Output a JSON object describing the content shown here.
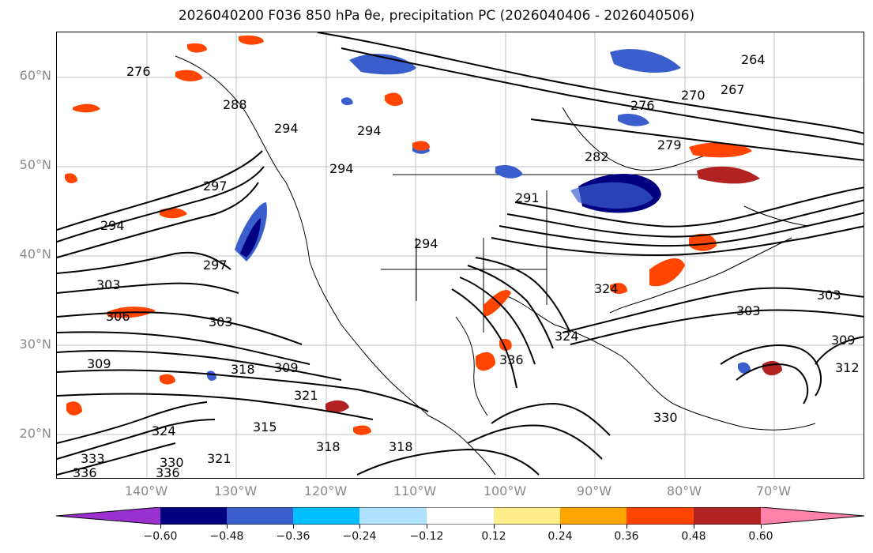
{
  "title": "2026040200 F036 850 hPa θe, precipitation PC (2026040406 - 2026040506)",
  "lat_labels": [
    {
      "text": "60°N",
      "value": 60
    },
    {
      "text": "50°N",
      "value": 50
    },
    {
      "text": "40°N",
      "value": 40
    },
    {
      "text": "30°N",
      "value": 30
    },
    {
      "text": "20°N",
      "value": 20
    }
  ],
  "lon_labels": [
    {
      "text": "140°W",
      "value": -140
    },
    {
      "text": "130°W",
      "value": -130
    },
    {
      "text": "120°W",
      "value": -120
    },
    {
      "text": "110°W",
      "value": -110
    },
    {
      "text": "100°W",
      "value": -100
    },
    {
      "text": "90°W",
      "value": -90
    },
    {
      "text": "80°W",
      "value": -80
    },
    {
      "text": "70°W",
      "value": -70
    }
  ],
  "map_extent": {
    "lon": [
      -150,
      -60
    ],
    "lat": [
      15,
      65
    ]
  },
  "contour_labels": [
    {
      "text": "276"
    },
    {
      "text": "288"
    },
    {
      "text": "294"
    },
    {
      "text": "294"
    },
    {
      "text": "294"
    },
    {
      "text": "297"
    },
    {
      "text": "294"
    },
    {
      "text": "297"
    },
    {
      "text": "303"
    },
    {
      "text": "306"
    },
    {
      "text": "303"
    },
    {
      "text": "309"
    },
    {
      "text": "318"
    },
    {
      "text": "309"
    },
    {
      "text": "321"
    },
    {
      "text": "315"
    },
    {
      "text": "324"
    },
    {
      "text": "318"
    },
    {
      "text": "318"
    },
    {
      "text": "321"
    },
    {
      "text": "333"
    },
    {
      "text": "336"
    },
    {
      "text": "336"
    },
    {
      "text": "330"
    },
    {
      "text": "282"
    },
    {
      "text": "279"
    },
    {
      "text": "276"
    },
    {
      "text": "270"
    },
    {
      "text": "267"
    },
    {
      "text": "264"
    },
    {
      "text": "291"
    },
    {
      "text": "294"
    },
    {
      "text": "324"
    },
    {
      "text": "324"
    },
    {
      "text": "336"
    },
    {
      "text": "303"
    },
    {
      "text": "303"
    },
    {
      "text": "309"
    },
    {
      "text": "312"
    },
    {
      "text": "330"
    }
  ],
  "colorbar": {
    "colors": [
      "#9b30d0",
      "#000080",
      "#3a5fcd",
      "#00bfff",
      "#b0e2ff",
      "#ffffff",
      "#ffec8b",
      "#ffa500",
      "#ff4500",
      "#b22222",
      "#ff82ab"
    ],
    "ticks": [
      "−0.60",
      "−0.48",
      "−0.36",
      "−0.24",
      "−0.12",
      "0.12",
      "0.24",
      "0.36",
      "0.48",
      "0.60"
    ]
  }
}
